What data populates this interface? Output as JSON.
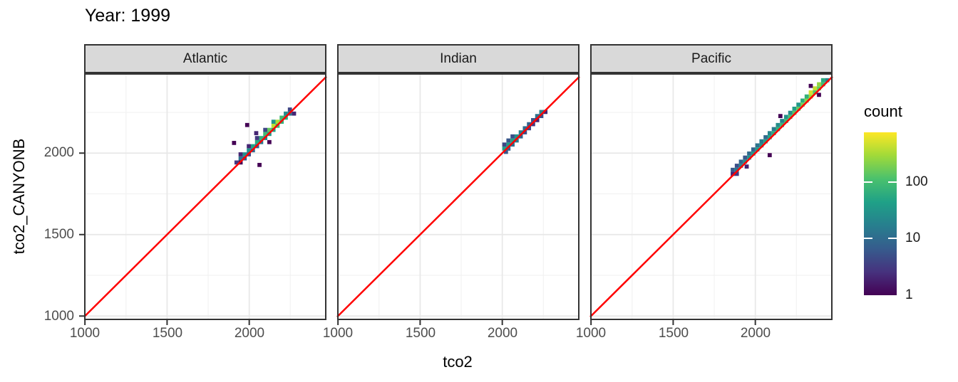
{
  "title": "Year: 1999",
  "x_axis": {
    "label": "tco2",
    "ticks": [
      "1000",
      "1500",
      "2000"
    ],
    "tick_values": [
      1000,
      1500,
      2000
    ],
    "minor": [
      1250,
      1750,
      2250
    ]
  },
  "y_axis": {
    "label": "tco2_CANYONB",
    "ticks": [
      "2000",
      "1500",
      "1000"
    ],
    "tick_values": [
      2000,
      1500,
      1000
    ],
    "minor": [
      1250,
      1750,
      2250
    ]
  },
  "legend": {
    "title": "count",
    "labels": [
      "100",
      "10",
      "1"
    ],
    "label_values": [
      100,
      10,
      1
    ],
    "max_count": 750
  },
  "style": {
    "strip_bg": "#d9d9d9",
    "panel_border": "#333333",
    "grid_major": "#e8e8e8",
    "grid_minor": "#f2f2f2",
    "tick_color": "#333333",
    "tick_label_color": "#4d4d4d",
    "identity_line_color": "#ff0000",
    "viridis": [
      "#440154",
      "#46327e",
      "#365c8d",
      "#277f8e",
      "#1fa187",
      "#4ac16d",
      "#a0da39",
      "#fde725"
    ]
  },
  "chart_data": {
    "type": "heatmap",
    "subtype": "geom_bin2d",
    "title": "Year: 1999",
    "xlabel": "tco2",
    "ylabel": "tco2_CANYONB",
    "legend_title": "count",
    "legend_scale": "log10",
    "x_domain": [
      995,
      2470
    ],
    "y_domain": [
      975,
      2490
    ],
    "bin_size": 25,
    "identity_line": true,
    "facets": [
      {
        "name": "Atlantic",
        "bins": [
          [
            1910,
            1930,
            3
          ],
          [
            1935,
            1930,
            1
          ],
          [
            1935,
            1955,
            12
          ],
          [
            1960,
            1955,
            6
          ],
          [
            1935,
            1980,
            2
          ],
          [
            1960,
            1980,
            28
          ],
          [
            1985,
            1980,
            4
          ],
          [
            1985,
            2005,
            28
          ],
          [
            2010,
            2005,
            9
          ],
          [
            1985,
            2030,
            2
          ],
          [
            2010,
            2030,
            45
          ],
          [
            2035,
            2030,
            7
          ],
          [
            2035,
            2055,
            55
          ],
          [
            2060,
            2055,
            14
          ],
          [
            2035,
            2080,
            3
          ],
          [
            2060,
            2080,
            70
          ],
          [
            2085,
            2080,
            20
          ],
          [
            2085,
            2105,
            90
          ],
          [
            2110,
            2105,
            35
          ],
          [
            2085,
            2130,
            4
          ],
          [
            2110,
            2130,
            150
          ],
          [
            2135,
            2130,
            45
          ],
          [
            2135,
            2155,
            380
          ],
          [
            2160,
            2155,
            90
          ],
          [
            2135,
            2180,
            30
          ],
          [
            2160,
            2180,
            320
          ],
          [
            2185,
            2180,
            70
          ],
          [
            2185,
            2205,
            90
          ],
          [
            2210,
            2205,
            60
          ],
          [
            2210,
            2230,
            25
          ],
          [
            2235,
            2230,
            12
          ],
          [
            2235,
            2255,
            4
          ],
          [
            2260,
            2230,
            2
          ],
          [
            1975,
            2160,
            1
          ],
          [
            1895,
            2050,
            1
          ],
          [
            2050,
            1915,
            1
          ],
          [
            2030,
            2110,
            2
          ],
          [
            2110,
            2055,
            1
          ]
        ]
      },
      {
        "name": "Indian",
        "bins": [
          [
            2000,
            2015,
            40
          ],
          [
            2010,
            1995,
            6
          ],
          [
            2025,
            2015,
            8
          ],
          [
            2000,
            2040,
            4
          ],
          [
            2025,
            2040,
            35
          ],
          [
            2050,
            2040,
            12
          ],
          [
            2025,
            2065,
            6
          ],
          [
            2050,
            2065,
            45
          ],
          [
            2075,
            2065,
            15
          ],
          [
            2050,
            2090,
            5
          ],
          [
            2075,
            2090,
            30
          ],
          [
            2100,
            2090,
            8
          ],
          [
            2100,
            2115,
            18
          ],
          [
            2125,
            2115,
            5
          ],
          [
            2125,
            2140,
            10
          ],
          [
            2150,
            2140,
            4
          ],
          [
            2150,
            2165,
            8
          ],
          [
            2175,
            2165,
            3
          ],
          [
            2175,
            2190,
            6
          ],
          [
            2200,
            2190,
            2
          ],
          [
            2200,
            2215,
            12
          ],
          [
            2225,
            2215,
            5
          ],
          [
            2225,
            2240,
            20
          ],
          [
            2250,
            2240,
            2
          ]
        ]
      },
      {
        "name": "Pacific",
        "bins": [
          [
            1850,
            1860,
            2
          ],
          [
            1850,
            1885,
            6
          ],
          [
            1875,
            1885,
            15
          ],
          [
            1875,
            1860,
            3
          ],
          [
            1900,
            1910,
            20
          ],
          [
            1875,
            1910,
            5
          ],
          [
            1900,
            1935,
            8
          ],
          [
            1925,
            1935,
            25
          ],
          [
            1950,
            1960,
            30
          ],
          [
            1925,
            1960,
            6
          ],
          [
            1950,
            1985,
            10
          ],
          [
            1975,
            1985,
            35
          ],
          [
            2000,
            2010,
            40
          ],
          [
            1975,
            2010,
            8
          ],
          [
            2000,
            2035,
            12
          ],
          [
            2025,
            2035,
            30
          ],
          [
            2025,
            2060,
            15
          ],
          [
            2050,
            2060,
            45
          ],
          [
            2075,
            2085,
            50
          ],
          [
            2050,
            2085,
            10
          ],
          [
            2075,
            2110,
            20
          ],
          [
            2100,
            2110,
            60
          ],
          [
            2125,
            2135,
            70
          ],
          [
            2100,
            2135,
            15
          ],
          [
            2125,
            2160,
            25
          ],
          [
            2150,
            2160,
            80
          ],
          [
            2175,
            2185,
            90
          ],
          [
            2150,
            2185,
            20
          ],
          [
            2175,
            2210,
            30
          ],
          [
            2200,
            2210,
            110
          ],
          [
            2225,
            2235,
            130
          ],
          [
            2200,
            2235,
            25
          ],
          [
            2225,
            2260,
            40
          ],
          [
            2250,
            2260,
            150
          ],
          [
            2275,
            2285,
            180
          ],
          [
            2250,
            2285,
            35
          ],
          [
            2275,
            2310,
            60
          ],
          [
            2300,
            2310,
            220
          ],
          [
            2325,
            2335,
            300
          ],
          [
            2300,
            2335,
            70
          ],
          [
            2325,
            2360,
            500
          ],
          [
            2350,
            2360,
            120
          ],
          [
            2350,
            2385,
            420
          ],
          [
            2375,
            2385,
            150
          ],
          [
            2375,
            2410,
            250
          ],
          [
            2400,
            2410,
            90
          ],
          [
            2400,
            2435,
            60
          ],
          [
            2425,
            2435,
            20
          ],
          [
            2075,
            1975,
            1
          ],
          [
            2140,
            2215,
            1
          ],
          [
            2325,
            2400,
            1
          ],
          [
            2375,
            2345,
            1
          ],
          [
            1935,
            1905,
            2
          ]
        ]
      }
    ]
  }
}
